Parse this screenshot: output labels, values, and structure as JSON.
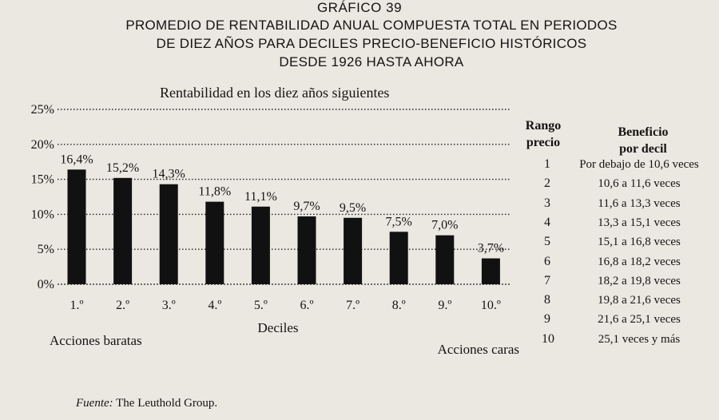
{
  "header": {
    "figure_number": "GRÁFICO 39",
    "title_lines": [
      "PROMEDIO DE RENTABILIDAD ANUAL COMPUESTA TOTAL EN PERIODOS",
      "DE DIEZ AÑOS PARA DECILES PRECIO-BENEFICIO HISTÓRICOS",
      "DESDE 1926 HASTA AHORA"
    ]
  },
  "chart_data": {
    "type": "bar",
    "title": "PROMEDIO DE RENTABILIDAD ANUAL COMPUESTA TOTAL EN PERIODOS DE DIEZ AÑOS PARA DECILES PRECIO-BENEFICIO HISTÓRICOS DESDE 1926 HASTA AHORA",
    "subtitle": "Rentabilidad en los diez años siguientes",
    "xlabel": "Deciles",
    "ylabel": "",
    "categories": [
      "1.º",
      "2.º",
      "3.º",
      "4.º",
      "5.º",
      "6.º",
      "7.º",
      "8.º",
      "9.º",
      "10.º"
    ],
    "values": [
      16.4,
      15.2,
      14.3,
      11.8,
      11.1,
      9.7,
      9.5,
      7.5,
      7.0,
      3.7
    ],
    "value_labels": [
      "16,4%",
      "15,2%",
      "14,3%",
      "11,8%",
      "11,1%",
      "9,7%",
      "9,5%",
      "7,5%",
      "7,0%",
      "3,7%"
    ],
    "ylim": [
      0,
      25
    ],
    "yticks": [
      0,
      5,
      10,
      15,
      20,
      25
    ],
    "ytick_labels": [
      "0%",
      "5%",
      "10%",
      "15%",
      "20%",
      "25%"
    ],
    "grid": true,
    "annotations": {
      "left": "Acciones baratas",
      "right": "Acciones caras"
    },
    "bar_color": "#111111"
  },
  "legend_table": {
    "col_rank_header": [
      "Rango",
      "precio"
    ],
    "col_range_header": [
      "Beneficio",
      "por decil"
    ],
    "rows": [
      {
        "rank": "1",
        "range": "Por debajo de 10,6 veces"
      },
      {
        "rank": "2",
        "range": "10,6 a 11,6 veces"
      },
      {
        "rank": "3",
        "range": "11,6 a 13,3 veces"
      },
      {
        "rank": "4",
        "range": "13,3 a 15,1 veces"
      },
      {
        "rank": "5",
        "range": "15,1 a 16,8 veces"
      },
      {
        "rank": "6",
        "range": "16,8 a 18,2 veces"
      },
      {
        "rank": "7",
        "range": "18,2 a 19,8 veces"
      },
      {
        "rank": "8",
        "range": "19,8 a 21,6 veces"
      },
      {
        "rank": "9",
        "range": "21,6 a 25,1 veces"
      },
      {
        "rank": "10",
        "range": "25,1 veces y más"
      }
    ]
  },
  "source": {
    "label": "Fuente:",
    "text": "The Leuthold Group."
  }
}
